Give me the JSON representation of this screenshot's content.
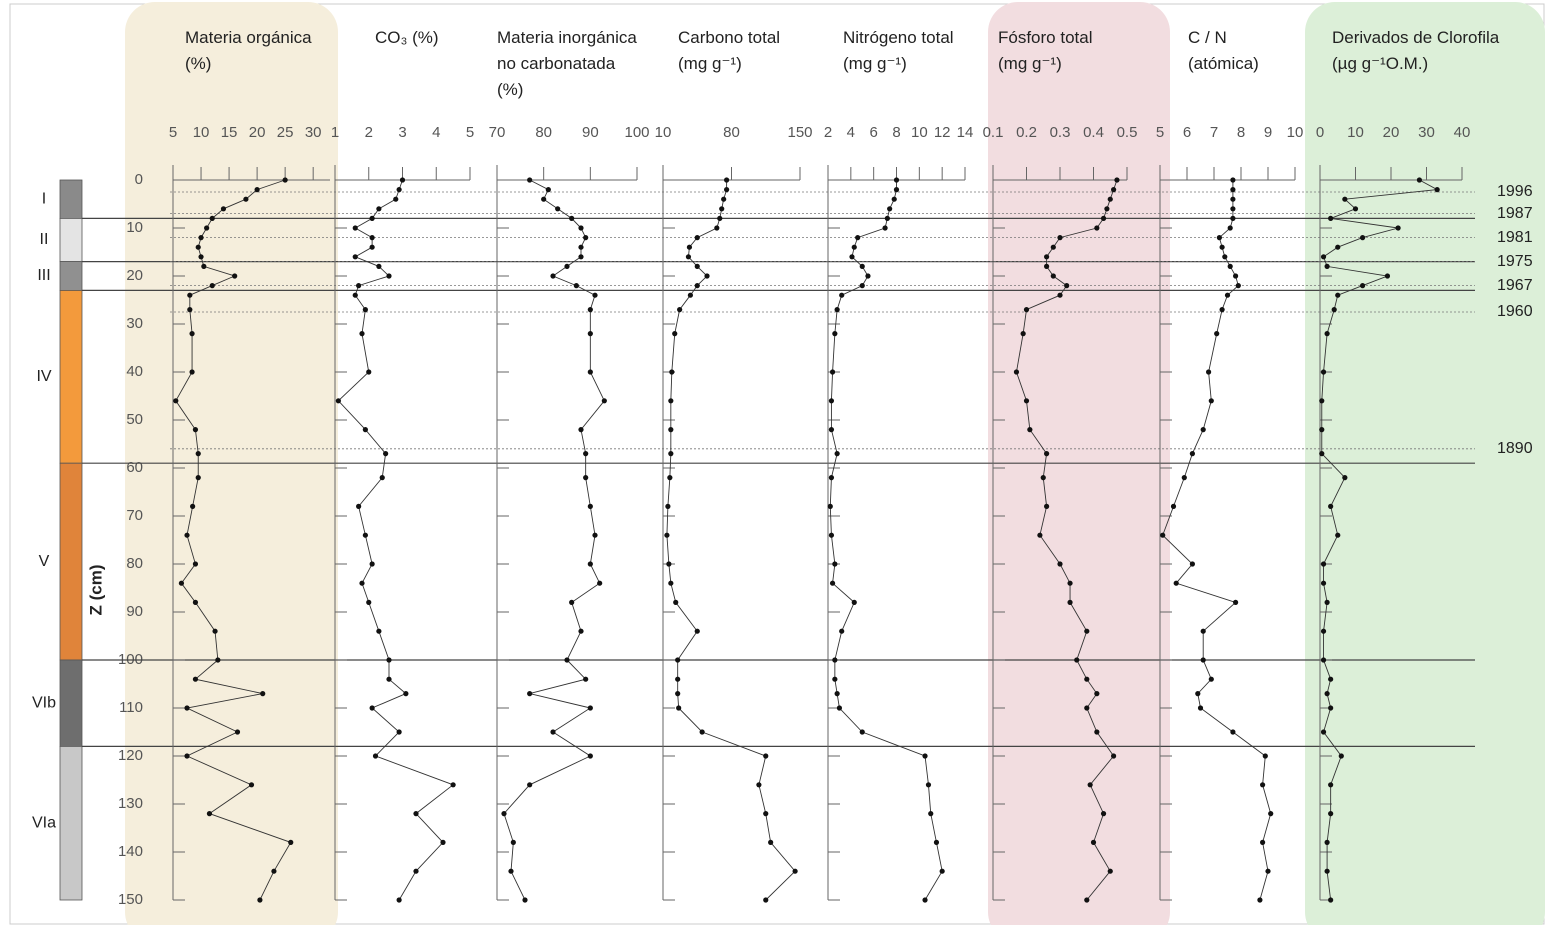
{
  "chart_data": {
    "type": "stratigraphic",
    "depth_label": "Z (cm)",
    "ylim": [
      0,
      150
    ],
    "yticks": [
      0,
      10,
      20,
      30,
      40,
      50,
      60,
      70,
      80,
      90,
      100,
      110,
      120,
      130,
      140,
      150
    ],
    "depths": [
      0,
      2,
      4,
      6,
      8,
      10,
      12,
      14,
      16,
      18,
      20,
      22,
      24,
      27,
      32,
      40,
      46,
      52,
      57,
      62,
      68,
      74,
      80,
      84,
      88,
      94,
      100,
      104,
      107,
      110,
      115,
      120,
      126,
      132,
      138,
      144,
      150
    ],
    "panels": [
      {
        "title": [
          "Materia orgánica",
          "(%)"
        ],
        "xlim": [
          5,
          33
        ],
        "xticks": [
          5,
          10,
          15,
          20,
          25,
          30
        ],
        "highlight": "#f5eedc",
        "values": [
          25,
          20,
          18,
          14,
          12,
          11,
          10,
          9.5,
          10,
          10.5,
          16,
          12,
          8,
          8,
          8.4,
          8.4,
          5.5,
          9,
          9.5,
          9.5,
          8.5,
          7.5,
          9,
          6.5,
          9,
          12.5,
          13,
          9,
          21,
          7.5,
          16.5,
          7.5,
          19,
          11.5,
          26,
          23,
          20.5
        ]
      },
      {
        "title": [
          "CO₃ (%)"
        ],
        "xlim": [
          1,
          5
        ],
        "xticks": [
          1,
          2,
          3,
          4,
          5
        ],
        "values": [
          3,
          2.9,
          2.8,
          2.3,
          2.1,
          1.6,
          2.1,
          2.1,
          1.6,
          2.3,
          2.6,
          1.7,
          1.6,
          1.9,
          1.8,
          2,
          1.1,
          1.9,
          2.5,
          2.4,
          1.7,
          1.9,
          2.1,
          1.8,
          2,
          2.3,
          2.6,
          2.6,
          3.1,
          2.1,
          2.9,
          2.2,
          4.5,
          3.4,
          4.2,
          3.4,
          2.9
        ]
      },
      {
        "title": [
          "Materia inorgánica",
          "no carbonatada",
          "(%)"
        ],
        "xlim": [
          70,
          100
        ],
        "xticks": [
          70,
          80,
          90,
          100
        ],
        "values": [
          77,
          81,
          80,
          83,
          86,
          88,
          89,
          88,
          88,
          85,
          82,
          87,
          91,
          90,
          90,
          90,
          93,
          88,
          89,
          89,
          90,
          91,
          90,
          92,
          86,
          88,
          85,
          89,
          77,
          90,
          82,
          90,
          77,
          71.5,
          73.5,
          73,
          76
        ]
      },
      {
        "title": [
          "Carbono total",
          "(mg g⁻¹)"
        ],
        "xlim": [
          10,
          150
        ],
        "xticks": [
          10,
          80,
          150
        ],
        "values": [
          75,
          75,
          72,
          70,
          68,
          65,
          45,
          37,
          36,
          45,
          55,
          45,
          38,
          27,
          22,
          19,
          18,
          18,
          18,
          17,
          15,
          14,
          16,
          18,
          23,
          45,
          25,
          25,
          25,
          26,
          50,
          115,
          108,
          115,
          120,
          145,
          115
        ]
      },
      {
        "title": [
          "Nitrógeno total",
          "(mg g⁻¹)"
        ],
        "xlim": [
          2,
          14
        ],
        "xticks": [
          2,
          4,
          6,
          8,
          10,
          12,
          14
        ],
        "values": [
          8,
          8,
          7.8,
          7.4,
          7.2,
          7,
          4.6,
          4.3,
          4.1,
          5,
          5.5,
          5,
          3.2,
          2.8,
          2.6,
          2.4,
          2.3,
          2.3,
          2.8,
          2.3,
          2.2,
          2.3,
          2.6,
          2.4,
          4.3,
          3.2,
          2.6,
          2.6,
          2.8,
          3,
          5,
          10.5,
          10.8,
          11,
          11.5,
          12,
          10.5
        ]
      },
      {
        "title": [
          "Fósforo total",
          "(mg g⁻¹)"
        ],
        "xlim": [
          0.1,
          0.5
        ],
        "xticks": [
          0.1,
          0.2,
          0.3,
          0.4,
          0.5
        ],
        "highlight": "#f2dde0",
        "values": [
          0.47,
          0.46,
          0.45,
          0.44,
          0.43,
          0.41,
          0.3,
          0.28,
          0.26,
          0.26,
          0.28,
          0.32,
          0.3,
          0.2,
          0.19,
          0.17,
          0.2,
          0.21,
          0.26,
          0.25,
          0.26,
          0.24,
          0.3,
          0.33,
          0.33,
          0.38,
          0.35,
          0.38,
          0.41,
          0.38,
          0.41,
          0.46,
          0.39,
          0.43,
          0.4,
          0.45,
          0.38
        ]
      },
      {
        "title": [
          "C / N",
          "(atómica)"
        ],
        "xlim": [
          5,
          10
        ],
        "xticks": [
          5,
          6,
          7,
          8,
          9,
          10
        ],
        "values": [
          7.7,
          7.7,
          7.7,
          7.7,
          7.7,
          7.6,
          7.2,
          7.3,
          7.4,
          7.6,
          7.8,
          7.9,
          7.5,
          7.3,
          7.1,
          6.8,
          6.9,
          6.6,
          6.2,
          5.9,
          5.5,
          5.1,
          6.2,
          5.6,
          7.8,
          6.6,
          6.6,
          6.9,
          6.4,
          6.5,
          7.7,
          8.9,
          8.8,
          9.1,
          8.8,
          9,
          8.7
        ]
      },
      {
        "title": [
          "Derivados de Clorofila",
          "(µg g⁻¹O.M.)"
        ],
        "xlim": [
          0,
          40
        ],
        "xticks": [
          0,
          10,
          20,
          30,
          40
        ],
        "highlight": "#dcefd8",
        "values": [
          28,
          33,
          7,
          10,
          3,
          22,
          12,
          5,
          1,
          2,
          19,
          12,
          5,
          4,
          2,
          1,
          0.5,
          0.5,
          0.5,
          7,
          3,
          5,
          1,
          1,
          2,
          1,
          1,
          3,
          2,
          3,
          1,
          6,
          3,
          3,
          2,
          2,
          3
        ]
      }
    ],
    "zones": [
      {
        "label": "I",
        "top": 0,
        "bottom": 8,
        "color": "#8a8a8a"
      },
      {
        "label": "II",
        "top": 8,
        "bottom": 17,
        "color": "#e4e4e4"
      },
      {
        "label": "III",
        "top": 17,
        "bottom": 23,
        "color": "#909090"
      },
      {
        "label": "IV",
        "top": 23,
        "bottom": 59,
        "color": "#f39a3c"
      },
      {
        "label": "V",
        "top": 59,
        "bottom": 100,
        "color": "#e0843a"
      },
      {
        "label": "VIb",
        "top": 100,
        "bottom": 118,
        "color": "#6e6e6e"
      },
      {
        "label": "VIa",
        "top": 118,
        "bottom": 150,
        "color": "#c8c8c8"
      }
    ],
    "horizons": [
      {
        "label": "1996",
        "depth": 2.5
      },
      {
        "label": "1987",
        "depth": 7
      },
      {
        "label": "1981",
        "depth": 12
      },
      {
        "label": "1975",
        "depth": 17
      },
      {
        "label": "1967",
        "depth": 22
      },
      {
        "label": "1960",
        "depth": 27.5
      },
      {
        "label": "1890",
        "depth": 56
      }
    ],
    "boundaries": [
      8,
      17,
      23,
      59,
      100,
      118
    ]
  }
}
